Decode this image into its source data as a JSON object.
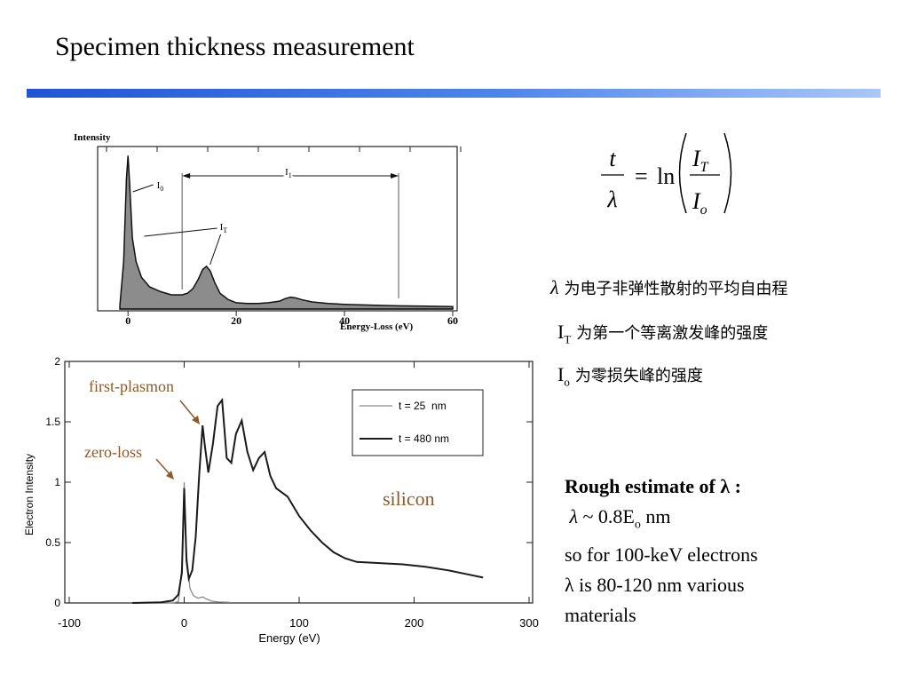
{
  "slide": {
    "title": "Specimen thickness measurement",
    "accent_color": "#1f55d6"
  },
  "formula": {
    "lhs_num": "t",
    "lhs_den": "λ",
    "equals": "=",
    "fn": "ln",
    "rhs_num": "I",
    "rhs_num_sub": "T",
    "rhs_den": "I",
    "rhs_den_sub": "o"
  },
  "definitions": [
    {
      "symbol": "λ",
      "sub": "",
      "text": "为电子非弹性散射的平均自由程"
    },
    {
      "symbol": "I",
      "sub": "T",
      "text": "为第一个等离激发峰的强度"
    },
    {
      "symbol": "I",
      "sub": "o",
      "text": "为零损失峰的强度"
    }
  ],
  "estimate": {
    "heading": "Rough estimate of λ :",
    "line1_lambda": "λ",
    "line1_a": " ~ 0.8E",
    "line1_sub": "o",
    "line1_b": " nm",
    "line2": " so for 100-keV electrons",
    "line3": " λ is 80-120 nm various",
    "line4": "materials"
  },
  "chart_data": [
    {
      "type": "area",
      "ylabel": "Intensity",
      "xlabel": "Energy-Loss (eV)",
      "xlim": [
        -2,
        60
      ],
      "ylim": [
        0,
        1
      ],
      "x_ticks": [
        "0",
        "20",
        "40",
        "60"
      ],
      "x_tick_values": [
        0,
        20,
        40,
        60
      ],
      "annotations": {
        "zero_loss": {
          "label": "I",
          "sub": "0"
        },
        "first_plasmon": {
          "label": "I",
          "sub": "T"
        },
        "window": {
          "label": "I",
          "sub": "1",
          "from": 10,
          "to": 50
        }
      },
      "x": [
        -1.5,
        -0.8,
        -0.3,
        0,
        0.3,
        0.8,
        1.5,
        2.5,
        4,
        6,
        8,
        10,
        11,
        12,
        13,
        13.8,
        14.5,
        15.2,
        16,
        17,
        18.5,
        20,
        22,
        24,
        26,
        28,
        29,
        30,
        31,
        32,
        34,
        37,
        40,
        45,
        50,
        55,
        60
      ],
      "y": [
        0.02,
        0.3,
        0.82,
        0.97,
        0.8,
        0.45,
        0.3,
        0.2,
        0.14,
        0.11,
        0.09,
        0.09,
        0.1,
        0.13,
        0.19,
        0.25,
        0.27,
        0.24,
        0.17,
        0.1,
        0.06,
        0.04,
        0.035,
        0.035,
        0.04,
        0.05,
        0.065,
        0.075,
        0.07,
        0.06,
        0.045,
        0.035,
        0.03,
        0.025,
        0.02,
        0.018,
        0.015
      ],
      "grid": false
    },
    {
      "type": "line",
      "xlabel": "Energy (eV)",
      "ylabel": "Electron Intensity",
      "xlim": [
        -100,
        300
      ],
      "ylim": [
        0,
        2
      ],
      "x_ticks": [
        "-100",
        "0",
        "100",
        "200",
        "300"
      ],
      "x_tick_values": [
        -100,
        0,
        100,
        200,
        300
      ],
      "y_ticks": [
        "0",
        "0.5",
        "1",
        "1.5",
        "2"
      ],
      "y_tick_values": [
        0,
        0.5,
        1,
        1.5,
        2
      ],
      "grid": false,
      "legend_position": "top-right",
      "annotations": [
        {
          "text": "first-plasmon",
          "color": "#8b5a2b"
        },
        {
          "text": "zero-loss",
          "color": "#8b5a2b"
        },
        {
          "text": "silicon",
          "color": "#8b5a2b"
        }
      ],
      "series": [
        {
          "name": "t = 25  nm",
          "color": "#8a8a8a",
          "x": [
            -45,
            -20,
            -10,
            -5,
            -2,
            0,
            2,
            5,
            8,
            12,
            16,
            20,
            24,
            30,
            40
          ],
          "y": [
            0,
            0,
            0,
            0.01,
            0.3,
            1.0,
            0.4,
            0.12,
            0.06,
            0.04,
            0.05,
            0.03,
            0.015,
            0.008,
            0.005
          ]
        },
        {
          "name": "t = 480 nm",
          "color": "#1a1a1a",
          "x": [
            -45,
            -20,
            -10,
            -5,
            -2,
            0,
            2,
            4,
            7,
            10,
            13,
            16,
            18,
            21,
            25,
            29,
            33,
            37,
            41,
            45,
            50,
            55,
            60,
            65,
            70,
            75,
            80,
            90,
            100,
            110,
            120,
            130,
            140,
            150,
            170,
            190,
            210,
            230,
            250,
            260
          ],
          "y": [
            0,
            0.005,
            0.02,
            0.07,
            0.25,
            0.95,
            0.35,
            0.2,
            0.27,
            0.55,
            1.05,
            1.47,
            1.3,
            1.08,
            1.32,
            1.63,
            1.68,
            1.2,
            1.16,
            1.4,
            1.51,
            1.25,
            1.1,
            1.2,
            1.25,
            1.05,
            0.95,
            0.88,
            0.72,
            0.6,
            0.5,
            0.42,
            0.37,
            0.34,
            0.33,
            0.32,
            0.3,
            0.27,
            0.23,
            0.21
          ]
        }
      ]
    }
  ]
}
